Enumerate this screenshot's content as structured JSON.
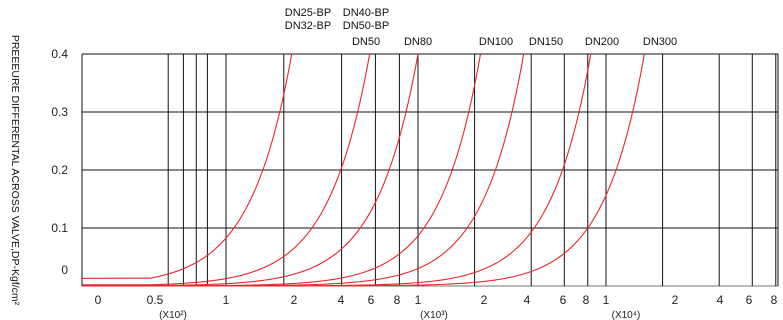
{
  "chart_data": {
    "type": "line",
    "ylabel": "PREEEURE DIFFERENTAL ACROSS VALVE,DP-Kgf/cm²",
    "ylim": [
      0,
      0.4
    ],
    "y_ticks": [
      "0.4",
      "0.3",
      "0.2",
      "0.1",
      "0"
    ],
    "x_scale": "log",
    "x_ticks": [
      "0",
      "0.5",
      "1",
      "2",
      "4",
      "6",
      "8",
      "1",
      "2",
      "4",
      "6",
      "8",
      "1",
      "2",
      "4",
      "6",
      "8"
    ],
    "x_multipliers": [
      "(X10²)",
      "(X10³)",
      "(X10⁴)"
    ],
    "grid": true,
    "line_color": "#e8262c",
    "series": [
      {
        "name": "DN25-BP",
        "x_at_max": 220
      },
      {
        "name": "DN32-BP",
        "x_at_max": 220
      },
      {
        "name": "DN40-BP",
        "x_at_max": 560
      },
      {
        "name": "DN50-BP",
        "x_at_max": 560
      },
      {
        "name": "DN50",
        "x_at_max": 560
      },
      {
        "name": "DN80",
        "x_at_max": 1000
      },
      {
        "name": "DN100",
        "x_at_max": 2150
      },
      {
        "name": "DN150",
        "x_at_max": 3650
      },
      {
        "name": "DN200",
        "x_at_max": 8300
      },
      {
        "name": "DN300",
        "x_at_max": 16000
      }
    ],
    "curves": [
      {
        "label": "DN25-BP/DN32-BP",
        "x_at_max": 220
      },
      {
        "label": "DN40-BP/DN50-BP/DN50",
        "x_at_max": 560
      },
      {
        "label": "DN80",
        "x_at_max": 1000
      },
      {
        "label": "DN100",
        "x_at_max": 2150
      },
      {
        "label": "DN150",
        "x_at_max": 3650
      },
      {
        "label": "DN200",
        "x_at_max": 8300
      },
      {
        "label": "DN300",
        "x_at_max": 16000
      }
    ]
  }
}
